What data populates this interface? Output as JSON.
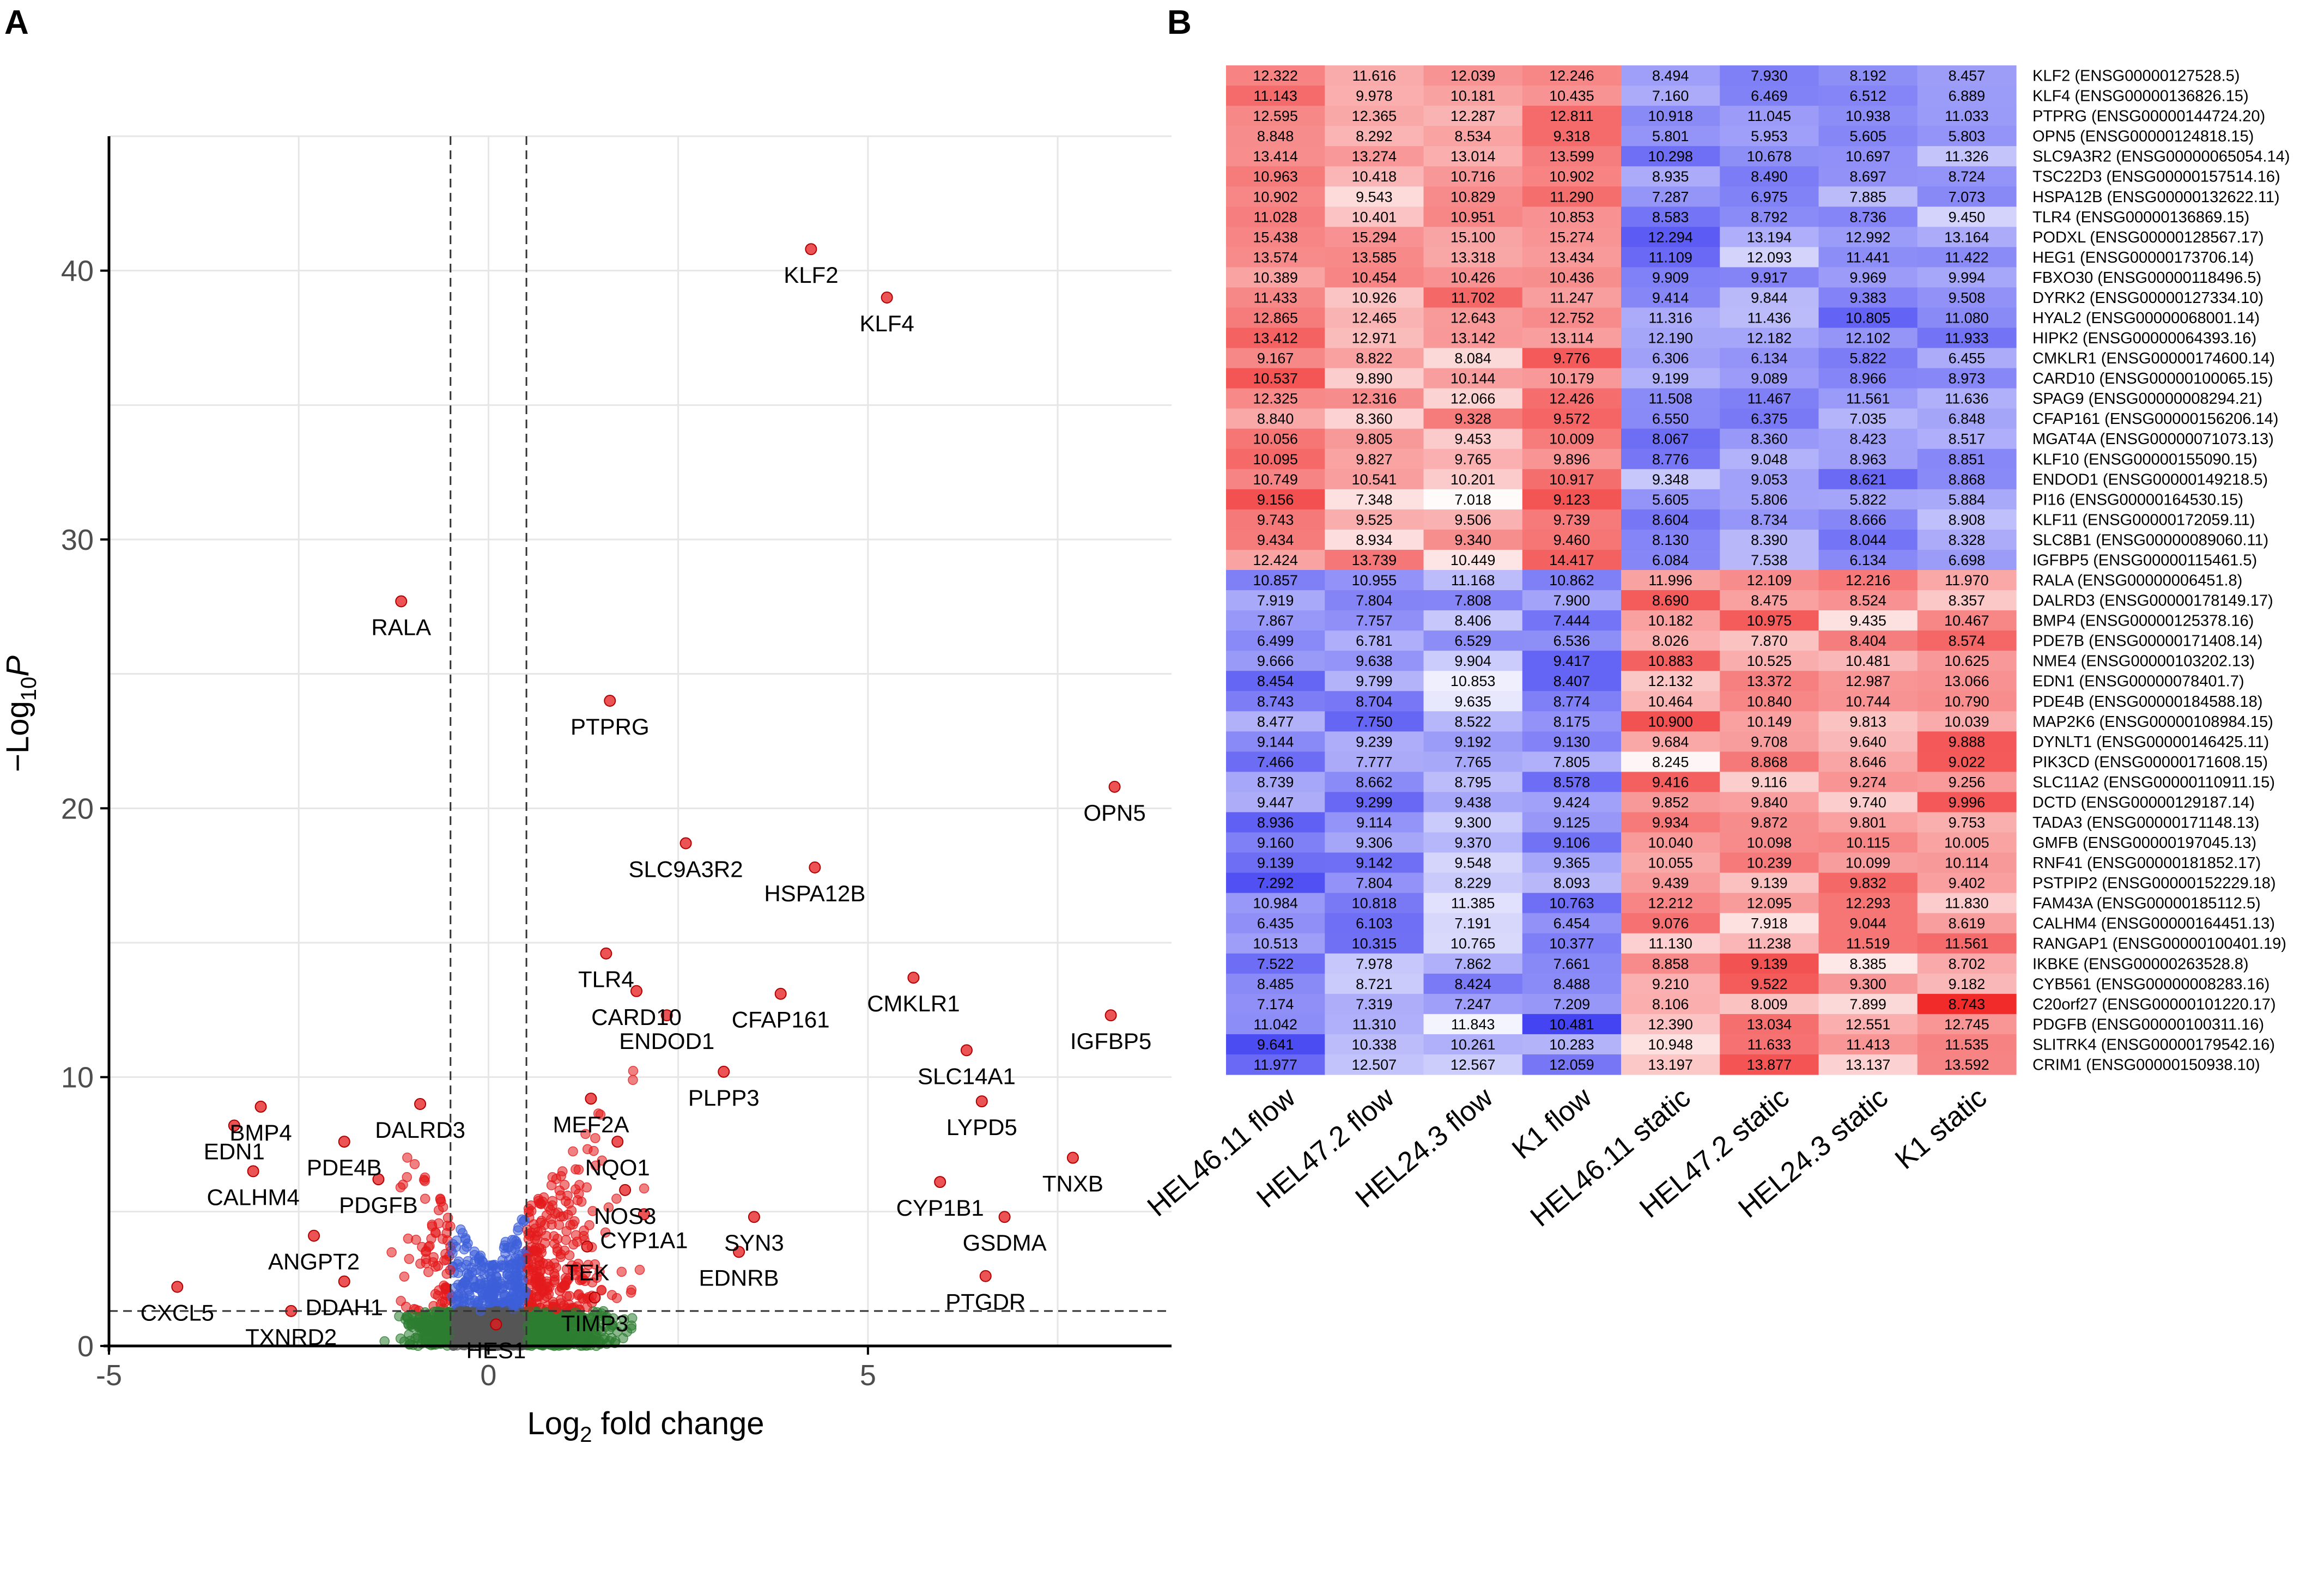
{
  "panels": {
    "a": "A",
    "b": "B"
  },
  "chart_data": [
    {
      "type": "scatter",
      "title": "",
      "xlabel_main": "Log",
      "xlabel_sub": "2",
      "xlabel_rest": " fold change",
      "ylabel_prefix": "−Log",
      "ylabel_sub": "10",
      "ylabel_var": "P",
      "xlim": [
        -5,
        9
      ],
      "ylim": [
        0,
        45
      ],
      "x_ticks": [
        -5,
        0,
        5
      ],
      "y_ticks": [
        0,
        10,
        20,
        30,
        40
      ],
      "fc_cutoff": 0.5,
      "p_cutoff": 1.3,
      "colors": {
        "sig": "#e41a1c",
        "fc_only": "#2e7d32",
        "p_only": "#3d5fd9",
        "ns": "#555555"
      },
      "labeled_genes": [
        {
          "gene": "KLF2",
          "x": 4.25,
          "y": 40.8
        },
        {
          "gene": "KLF4",
          "x": 5.25,
          "y": 39.0
        },
        {
          "gene": "RALA",
          "x": -1.15,
          "y": 27.7
        },
        {
          "gene": "PTPRG",
          "x": 1.6,
          "y": 24.0
        },
        {
          "gene": "OPN5",
          "x": 8.25,
          "y": 20.8
        },
        {
          "gene": "SLC9A3R2",
          "x": 2.6,
          "y": 18.7
        },
        {
          "gene": "HSPA12B",
          "x": 4.3,
          "y": 17.8
        },
        {
          "gene": "TLR4",
          "x": 1.55,
          "y": 14.6
        },
        {
          "gene": "CARD10",
          "x": 1.95,
          "y": 13.2
        },
        {
          "gene": "ENDOD1",
          "x": 2.35,
          "y": 12.3
        },
        {
          "gene": "CFAP161",
          "x": 3.85,
          "y": 13.1
        },
        {
          "gene": "CMKLR1",
          "x": 5.6,
          "y": 13.7
        },
        {
          "gene": "IGFBP5",
          "x": 8.2,
          "y": 12.3
        },
        {
          "gene": "SLC14A1",
          "x": 6.3,
          "y": 11.0
        },
        {
          "gene": "PLPP3",
          "x": 3.1,
          "y": 10.2
        },
        {
          "gene": "LYPD5",
          "x": 6.5,
          "y": 9.1
        },
        {
          "gene": "MEF2A",
          "x": 1.35,
          "y": 9.2
        },
        {
          "gene": "NQO1",
          "x": 1.7,
          "y": 7.6
        },
        {
          "gene": "TNXB",
          "x": 7.7,
          "y": 7.0
        },
        {
          "gene": "CYP1B1",
          "x": 5.95,
          "y": 6.1
        },
        {
          "gene": "NOS3",
          "x": 1.8,
          "y": 5.8
        },
        {
          "gene": "CYP1A1",
          "x": 2.05,
          "y": 4.9
        },
        {
          "gene": "SYN3",
          "x": 3.5,
          "y": 4.8
        },
        {
          "gene": "GSDMA",
          "x": 6.8,
          "y": 4.8
        },
        {
          "gene": "TEK",
          "x": 1.3,
          "y": 3.7
        },
        {
          "gene": "EDNRB",
          "x": 3.3,
          "y": 3.5
        },
        {
          "gene": "PTGDR",
          "x": 6.55,
          "y": 2.6
        },
        {
          "gene": "TIMP3",
          "x": 1.4,
          "y": 1.8
        },
        {
          "gene": "HES1",
          "x": 0.1,
          "y": 0.8
        },
        {
          "gene": "BMP4",
          "x": -3.0,
          "y": 8.9
        },
        {
          "gene": "DALRD3",
          "x": -0.9,
          "y": 9.0
        },
        {
          "gene": "EDN1",
          "x": -3.35,
          "y": 8.2
        },
        {
          "gene": "PDE4B",
          "x": -1.9,
          "y": 7.6
        },
        {
          "gene": "CALHM4",
          "x": -3.1,
          "y": 6.5
        },
        {
          "gene": "PDGFB",
          "x": -1.45,
          "y": 6.2
        },
        {
          "gene": "ANGPT2",
          "x": -2.3,
          "y": 4.1
        },
        {
          "gene": "DDAH1",
          "x": -1.9,
          "y": 2.4
        },
        {
          "gene": "CXCL5",
          "x": -4.1,
          "y": 2.2
        },
        {
          "gene": "TXNRD2",
          "x": -2.6,
          "y": 1.3
        }
      ]
    },
    {
      "type": "heatmap",
      "columns": [
        "HEL46.11 flow",
        "HEL47.2 flow",
        "HEL24.3 flow",
        "K1 flow",
        "HEL46.11 static",
        "HEL47.2 static",
        "HEL24.3 static",
        "K1 static"
      ],
      "color_low": "#2020f0",
      "color_mid": "#ffffff",
      "color_high": "#f02020",
      "rows": [
        {
          "label": "KLF2  (ENSG00000127528.5)",
          "values": [
            "12.322",
            "11.616",
            "12.039",
            "12.246",
            "8.494",
            "7.930",
            "8.192",
            "8.457"
          ]
        },
        {
          "label": "KLF4  (ENSG00000136826.15)",
          "values": [
            "11.143",
            "9.978",
            "10.181",
            "10.435",
            "7.160",
            "6.469",
            "6.512",
            "6.889"
          ]
        },
        {
          "label": "PTPRG  (ENSG00000144724.20)",
          "values": [
            "12.595",
            "12.365",
            "12.287",
            "12.811",
            "10.918",
            "11.045",
            "10.938",
            "11.033"
          ]
        },
        {
          "label": "OPN5  (ENSG00000124818.15)",
          "values": [
            "8.848",
            "8.292",
            "8.534",
            "9.318",
            "5.801",
            "5.953",
            "5.605",
            "5.803"
          ]
        },
        {
          "label": "SLC9A3R2  (ENSG00000065054.14)",
          "values": [
            "13.414",
            "13.274",
            "13.014",
            "13.599",
            "10.298",
            "10.678",
            "10.697",
            "11.326"
          ]
        },
        {
          "label": "TSC22D3  (ENSG00000157514.16)",
          "values": [
            "10.963",
            "10.418",
            "10.716",
            "10.902",
            "8.935",
            "8.490",
            "8.697",
            "8.724"
          ]
        },
        {
          "label": "HSPA12B  (ENSG00000132622.11)",
          "values": [
            "10.902",
            "9.543",
            "10.829",
            "11.290",
            "7.287",
            "6.975",
            "7.885",
            "7.073"
          ]
        },
        {
          "label": "TLR4  (ENSG00000136869.15)",
          "values": [
            "11.028",
            "10.401",
            "10.951",
            "10.853",
            "8.583",
            "8.792",
            "8.736",
            "9.450"
          ]
        },
        {
          "label": "PODXL  (ENSG00000128567.17)",
          "values": [
            "15.438",
            "15.294",
            "15.100",
            "15.274",
            "12.294",
            "13.194",
            "12.992",
            "13.164"
          ]
        },
        {
          "label": "HEG1  (ENSG00000173706.14)",
          "values": [
            "13.574",
            "13.585",
            "13.318",
            "13.434",
            "11.109",
            "12.093",
            "11.441",
            "11.422"
          ]
        },
        {
          "label": "FBXO30  (ENSG00000118496.5)",
          "values": [
            "10.389",
            "10.454",
            "10.426",
            "10.436",
            "9.909",
            "9.917",
            "9.969",
            "9.994"
          ]
        },
        {
          "label": "DYRK2  (ENSG00000127334.10)",
          "values": [
            "11.433",
            "10.926",
            "11.702",
            "11.247",
            "9.414",
            "9.844",
            "9.383",
            "9.508"
          ]
        },
        {
          "label": "HYAL2  (ENSG00000068001.14)",
          "values": [
            "12.865",
            "12.465",
            "12.643",
            "12.752",
            "11.316",
            "11.436",
            "10.805",
            "11.080"
          ]
        },
        {
          "label": "HIPK2  (ENSG00000064393.16)",
          "values": [
            "13.412",
            "12.971",
            "13.142",
            "13.114",
            "12.190",
            "12.182",
            "12.102",
            "11.933"
          ]
        },
        {
          "label": "CMKLR1  (ENSG00000174600.14)",
          "values": [
            "9.167",
            "8.822",
            "8.084",
            "9.776",
            "6.306",
            "6.134",
            "5.822",
            "6.455"
          ]
        },
        {
          "label": "CARD10  (ENSG00000100065.15)",
          "values": [
            "10.537",
            "9.890",
            "10.144",
            "10.179",
            "9.199",
            "9.089",
            "8.966",
            "8.973"
          ]
        },
        {
          "label": "SPAG9  (ENSG00000008294.21)",
          "values": [
            "12.325",
            "12.316",
            "12.066",
            "12.426",
            "11.508",
            "11.467",
            "11.561",
            "11.636"
          ]
        },
        {
          "label": "CFAP161  (ENSG00000156206.14)",
          "values": [
            "8.840",
            "8.360",
            "9.328",
            "9.572",
            "6.550",
            "6.375",
            "7.035",
            "6.848"
          ]
        },
        {
          "label": "MGAT4A  (ENSG00000071073.13)",
          "values": [
            "10.056",
            "9.805",
            "9.453",
            "10.009",
            "8.067",
            "8.360",
            "8.423",
            "8.517"
          ]
        },
        {
          "label": "KLF10  (ENSG00000155090.15)",
          "values": [
            "10.095",
            "9.827",
            "9.765",
            "9.896",
            "8.776",
            "9.048",
            "8.963",
            "8.851"
          ]
        },
        {
          "label": "ENDOD1  (ENSG00000149218.5)",
          "values": [
            "10.749",
            "10.541",
            "10.201",
            "10.917",
            "9.348",
            "9.053",
            "8.621",
            "8.868"
          ]
        },
        {
          "label": "PI16  (ENSG00000164530.15)",
          "values": [
            "9.156",
            "7.348",
            "7.018",
            "9.123",
            "5.605",
            "5.806",
            "5.822",
            "5.884"
          ]
        },
        {
          "label": "KLF11  (ENSG00000172059.11)",
          "values": [
            "9.743",
            "9.525",
            "9.506",
            "9.739",
            "8.604",
            "8.734",
            "8.666",
            "8.908"
          ]
        },
        {
          "label": "SLC8B1  (ENSG00000089060.11)",
          "values": [
            "9.434",
            "8.934",
            "9.340",
            "9.460",
            "8.130",
            "8.390",
            "8.044",
            "8.328"
          ]
        },
        {
          "label": "IGFBP5  (ENSG00000115461.5)",
          "values": [
            "12.424",
            "13.739",
            "10.449",
            "14.417",
            "6.084",
            "7.538",
            "6.134",
            "6.698"
          ]
        },
        {
          "label": "RALA  (ENSG00000006451.8)",
          "values": [
            "10.857",
            "10.955",
            "11.168",
            "10.862",
            "11.996",
            "12.109",
            "12.216",
            "11.970"
          ]
        },
        {
          "label": "DALRD3  (ENSG00000178149.17)",
          "values": [
            "7.919",
            "7.804",
            "7.808",
            "7.900",
            "8.690",
            "8.475",
            "8.524",
            "8.357"
          ]
        },
        {
          "label": "BMP4  (ENSG00000125378.16)",
          "values": [
            "7.867",
            "7.757",
            "8.406",
            "7.444",
            "10.182",
            "10.975",
            "9.435",
            "10.467"
          ]
        },
        {
          "label": "PDE7B  (ENSG00000171408.14)",
          "values": [
            "6.499",
            "6.781",
            "6.529",
            "6.536",
            "8.026",
            "7.870",
            "8.404",
            "8.574"
          ]
        },
        {
          "label": "NME4  (ENSG00000103202.13)",
          "values": [
            "9.666",
            "9.638",
            "9.904",
            "9.417",
            "10.883",
            "10.525",
            "10.481",
            "10.625"
          ]
        },
        {
          "label": "EDN1  (ENSG00000078401.7)",
          "values": [
            "8.454",
            "9.799",
            "10.853",
            "8.407",
            "12.132",
            "13.372",
            "12.987",
            "13.066"
          ]
        },
        {
          "label": "PDE4B  (ENSG00000184588.18)",
          "values": [
            "8.743",
            "8.704",
            "9.635",
            "8.774",
            "10.464",
            "10.840",
            "10.744",
            "10.790"
          ]
        },
        {
          "label": "MAP2K6  (ENSG00000108984.15)",
          "values": [
            "8.477",
            "7.750",
            "8.522",
            "8.175",
            "10.900",
            "10.149",
            "9.813",
            "10.039"
          ]
        },
        {
          "label": "DYNLT1  (ENSG00000146425.11)",
          "values": [
            "9.144",
            "9.239",
            "9.192",
            "9.130",
            "9.684",
            "9.708",
            "9.640",
            "9.888"
          ]
        },
        {
          "label": "PIK3CD  (ENSG00000171608.15)",
          "values": [
            "7.466",
            "7.777",
            "7.765",
            "7.805",
            "8.245",
            "8.868",
            "8.646",
            "9.022"
          ]
        },
        {
          "label": "SLC11A2  (ENSG00000110911.15)",
          "values": [
            "8.739",
            "8.662",
            "8.795",
            "8.578",
            "9.416",
            "9.116",
            "9.274",
            "9.256"
          ]
        },
        {
          "label": "DCTD  (ENSG00000129187.14)",
          "values": [
            "9.447",
            "9.299",
            "9.438",
            "9.424",
            "9.852",
            "9.840",
            "9.740",
            "9.996"
          ]
        },
        {
          "label": "TADA3  (ENSG00000171148.13)",
          "values": [
            "8.936",
            "9.114",
            "9.300",
            "9.125",
            "9.934",
            "9.872",
            "9.801",
            "9.753"
          ]
        },
        {
          "label": "GMFB  (ENSG00000197045.13)",
          "values": [
            "9.160",
            "9.306",
            "9.370",
            "9.106",
            "10.040",
            "10.098",
            "10.115",
            "10.005"
          ]
        },
        {
          "label": "RNF41  (ENSG00000181852.17)",
          "values": [
            "9.139",
            "9.142",
            "9.548",
            "9.365",
            "10.055",
            "10.239",
            "10.099",
            "10.114"
          ]
        },
        {
          "label": "PSTPIP2  (ENSG00000152229.18)",
          "values": [
            "7.292",
            "7.804",
            "8.229",
            "8.093",
            "9.439",
            "9.139",
            "9.832",
            "9.402"
          ]
        },
        {
          "label": "FAM43A  (ENSG00000185112.5)",
          "values": [
            "10.984",
            "10.818",
            "11.385",
            "10.763",
            "12.212",
            "12.095",
            "12.293",
            "11.830"
          ]
        },
        {
          "label": "CALHM4  (ENSG00000164451.13)",
          "values": [
            "6.435",
            "6.103",
            "7.191",
            "6.454",
            "9.076",
            "7.918",
            "9.044",
            "8.619"
          ]
        },
        {
          "label": "RANGAP1  (ENSG00000100401.19)",
          "values": [
            "10.513",
            "10.315",
            "10.765",
            "10.377",
            "11.130",
            "11.238",
            "11.519",
            "11.561"
          ]
        },
        {
          "label": "IKBKE  (ENSG00000263528.8)",
          "values": [
            "7.522",
            "7.978",
            "7.862",
            "7.661",
            "8.858",
            "9.139",
            "8.385",
            "8.702"
          ]
        },
        {
          "label": "CYB561  (ENSG00000008283.16)",
          "values": [
            "8.485",
            "8.721",
            "8.424",
            "8.488",
            "9.210",
            "9.522",
            "9.300",
            "9.182"
          ]
        },
        {
          "label": "C20orf27  (ENSG00000101220.17)",
          "values": [
            "7.174",
            "7.319",
            "7.247",
            "7.209",
            "8.106",
            "8.009",
            "7.899",
            "8.743"
          ]
        },
        {
          "label": "PDGFB  (ENSG00000100311.16)",
          "values": [
            "11.042",
            "11.310",
            "11.843",
            "10.481",
            "12.390",
            "13.034",
            "12.551",
            "12.745"
          ]
        },
        {
          "label": "SLITRK4  (ENSG00000179542.16)",
          "values": [
            "9.641",
            "10.338",
            "10.261",
            "10.283",
            "10.948",
            "11.633",
            "11.413",
            "11.535"
          ]
        },
        {
          "label": "CRIM1  (ENSG00000150938.10)",
          "values": [
            "11.977",
            "12.507",
            "12.567",
            "12.059",
            "13.197",
            "13.877",
            "13.137",
            "13.592"
          ]
        }
      ]
    }
  ]
}
